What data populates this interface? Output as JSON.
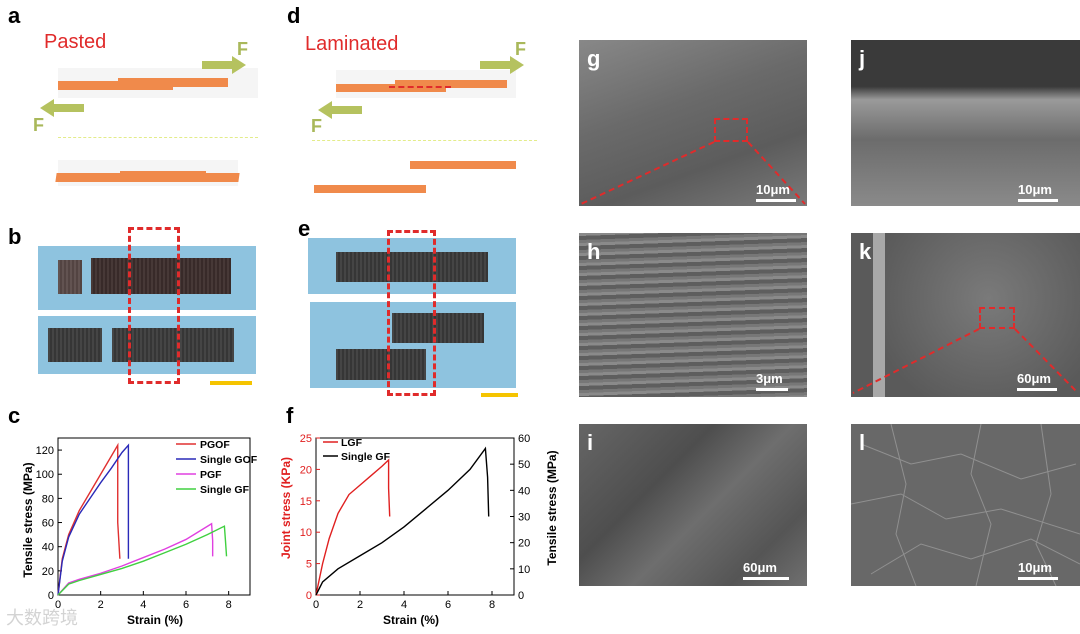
{
  "panels": {
    "a": "a",
    "b": "b",
    "c": "c",
    "d": "d",
    "e": "e",
    "f": "f",
    "g": "g",
    "h": "h",
    "i": "i",
    "j": "j",
    "k": "k",
    "l": "l"
  },
  "schematic": {
    "pasted_title": "Pasted",
    "laminated_title": "Laminated",
    "force_label": "F"
  },
  "sem": {
    "g_scale": "10μm",
    "h_scale": "3μm",
    "i_scale": "60μm",
    "j_scale": "10μm",
    "k_scale": "60μm",
    "l_scale": "10μm"
  },
  "colors": {
    "strip": "#f08a4b",
    "arrow": "#b5c25f",
    "dash": "#e02b2b",
    "photo_bg": "#8ec3df",
    "scale_bar": "#f5c400"
  },
  "watermark": "大数跨境",
  "chart_data": [
    {
      "id": "c",
      "type": "line",
      "xlabel": "Strain (%)",
      "ylabel": "Tensile stress (MPa)",
      "xlim": [
        0,
        9
      ],
      "ylim": [
        0,
        130
      ],
      "xticks": [
        0,
        2,
        4,
        6,
        8
      ],
      "yticks": [
        0,
        20,
        40,
        60,
        80,
        100,
        120
      ],
      "series": [
        {
          "name": "PGOF",
          "color": "#e03030",
          "x": [
            0,
            0.2,
            0.5,
            1.0,
            1.5,
            2.0,
            2.5,
            2.8,
            2.8,
            2.9
          ],
          "y": [
            0,
            30,
            50,
            70,
            85,
            100,
            115,
            124,
            60,
            30
          ]
        },
        {
          "name": "Single GOF",
          "color": "#2a2ab8",
          "x": [
            0,
            0.2,
            0.5,
            1.0,
            1.5,
            2.0,
            2.5,
            3.0,
            3.3,
            3.3,
            3.3
          ],
          "y": [
            0,
            28,
            48,
            67,
            80,
            93,
            105,
            118,
            124,
            60,
            30
          ]
        },
        {
          "name": "PGF",
          "color": "#e040e0",
          "x": [
            0,
            0.5,
            1.0,
            2.0,
            3.0,
            4.0,
            5.0,
            6.0,
            7.2,
            7.25,
            7.25
          ],
          "y": [
            0,
            10,
            13,
            18,
            24,
            31,
            38,
            46,
            59,
            45,
            32
          ]
        },
        {
          "name": "Single GF",
          "color": "#40d040",
          "x": [
            0,
            0.5,
            1.0,
            2.0,
            3.0,
            4.0,
            5.0,
            6.0,
            7.0,
            7.8,
            7.85,
            7.9
          ],
          "y": [
            0,
            9,
            12,
            17,
            22,
            28,
            35,
            42,
            50,
            57,
            45,
            32
          ]
        }
      ]
    },
    {
      "id": "f",
      "type": "line",
      "xlabel": "Strain (%)",
      "ylabel_left": "Joint stress (KPa)",
      "ylabel_right": "Tensile stress (MPa)",
      "xlim": [
        0,
        9
      ],
      "ylim_left": [
        0,
        25
      ],
      "ylim_right": [
        0,
        60
      ],
      "xticks": [
        0,
        2,
        4,
        6,
        8
      ],
      "yticks_left": [
        0,
        5,
        10,
        15,
        20,
        25
      ],
      "yticks_right": [
        0,
        10,
        20,
        30,
        40,
        50,
        60
      ],
      "series": [
        {
          "name": "LGF",
          "color": "#e02020",
          "axis": "left",
          "x": [
            0,
            0.3,
            0.6,
            1.0,
            1.5,
            2.0,
            2.5,
            3.0,
            3.3,
            3.3,
            3.35
          ],
          "y": [
            0,
            5,
            9,
            13,
            16,
            17.5,
            19,
            20.5,
            21.5,
            17,
            12.5
          ]
        },
        {
          "name": "Single GF",
          "color": "#000000",
          "axis": "right",
          "x": [
            0,
            0.3,
            1.0,
            2.0,
            3.0,
            4.0,
            5.0,
            6.0,
            7.0,
            7.7,
            7.8,
            7.85
          ],
          "y": [
            0,
            5,
            10,
            15,
            20,
            26,
            33,
            40,
            48,
            56,
            45,
            30
          ]
        }
      ]
    }
  ]
}
